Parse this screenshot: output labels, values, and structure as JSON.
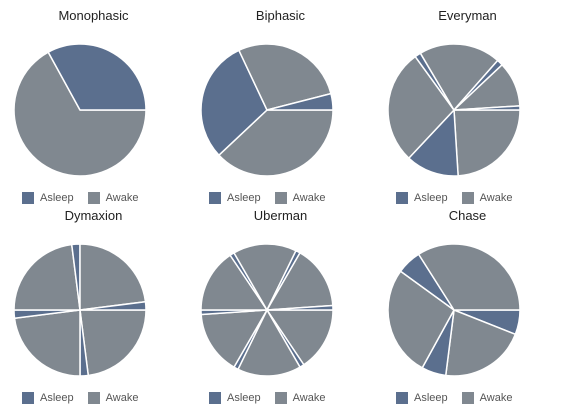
{
  "colors": {
    "asleep": "#5b6f8e",
    "awake": "#808890",
    "divider": "#ffffff"
  },
  "chart_data": [
    {
      "type": "pie",
      "title": "Monophasic",
      "legend": [
        "Asleep",
        "Awake"
      ],
      "legend_position": "bottom-left",
      "slices": [
        {
          "category": "Awake",
          "value": 67
        },
        {
          "category": "Asleep",
          "value": 33
        }
      ]
    },
    {
      "type": "pie",
      "title": "Biphasic",
      "legend": [
        "Asleep",
        "Awake"
      ],
      "legend_position": "bottom-left",
      "slices": [
        {
          "category": "Awake",
          "value": 38
        },
        {
          "category": "Asleep",
          "value": 30
        },
        {
          "category": "Awake",
          "value": 28
        },
        {
          "category": "Asleep",
          "value": 4
        }
      ]
    },
    {
      "type": "pie",
      "title": "Everyman",
      "legend": [
        "Asleep",
        "Awake"
      ],
      "legend_position": "bottom-left",
      "slices": [
        {
          "category": "Awake",
          "value": 24
        },
        {
          "category": "Asleep",
          "value": 13
        },
        {
          "category": "Awake",
          "value": 28
        },
        {
          "category": "Asleep",
          "value": 1.5
        },
        {
          "category": "Awake",
          "value": 20
        },
        {
          "category": "Asleep",
          "value": 1.5
        },
        {
          "category": "Awake",
          "value": 11
        },
        {
          "category": "Asleep",
          "value": 1
        }
      ]
    },
    {
      "type": "pie",
      "title": "Dymaxion",
      "legend": [
        "Asleep",
        "Awake"
      ],
      "legend_position": "bottom-left",
      "slices": [
        {
          "category": "Awake",
          "value": 23
        },
        {
          "category": "Asleep",
          "value": 2
        },
        {
          "category": "Awake",
          "value": 23
        },
        {
          "category": "Asleep",
          "value": 2
        },
        {
          "category": "Awake",
          "value": 23
        },
        {
          "category": "Asleep",
          "value": 2
        },
        {
          "category": "Awake",
          "value": 23
        },
        {
          "category": "Asleep",
          "value": 2
        }
      ]
    },
    {
      "type": "pie",
      "title": "Uberman",
      "legend": [
        "Asleep",
        "Awake"
      ],
      "legend_position": "bottom-left",
      "slices": [
        {
          "category": "Awake",
          "value": 15.6
        },
        {
          "category": "Asleep",
          "value": 1.1
        },
        {
          "category": "Awake",
          "value": 15.6
        },
        {
          "category": "Asleep",
          "value": 1.1
        },
        {
          "category": "Awake",
          "value": 15.6
        },
        {
          "category": "Asleep",
          "value": 1.1
        },
        {
          "category": "Awake",
          "value": 15.6
        },
        {
          "category": "Asleep",
          "value": 1.1
        },
        {
          "category": "Awake",
          "value": 15.6
        },
        {
          "category": "Asleep",
          "value": 1.1
        },
        {
          "category": "Awake",
          "value": 15.6
        },
        {
          "category": "Asleep",
          "value": 1.1
        }
      ]
    },
    {
      "type": "pie",
      "title": "Chase",
      "legend": [
        "Asleep",
        "Awake"
      ],
      "legend_position": "bottom-left",
      "slices": [
        {
          "category": "Asleep",
          "value": 6
        },
        {
          "category": "Awake",
          "value": 21
        },
        {
          "category": "Asleep",
          "value": 6
        },
        {
          "category": "Awake",
          "value": 27
        },
        {
          "category": "Asleep",
          "value": 6
        },
        {
          "category": "Awake",
          "value": 34
        }
      ]
    }
  ]
}
